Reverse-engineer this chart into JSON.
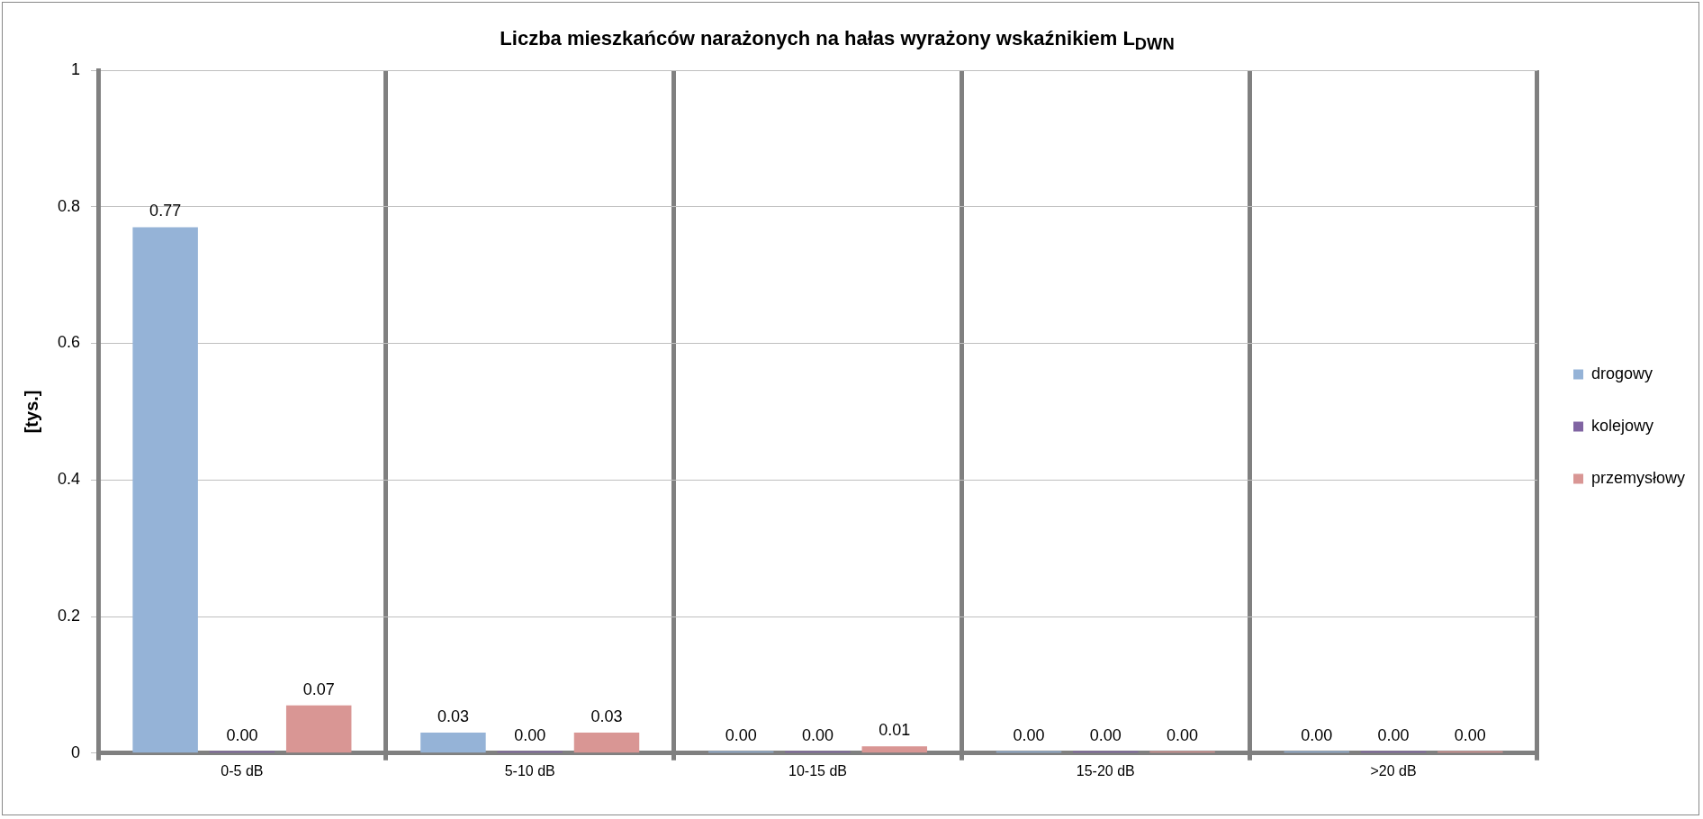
{
  "chart_data": {
    "type": "bar",
    "title": "Liczba mieszkańców narażonych na hałas wyrażony wskaźnikiem L$_{DWN}$",
    "ylabel": "[tys.]",
    "categories": [
      "0-5 dB",
      "5-10 dB",
      "10-15 dB",
      "15-20 dB",
      ">20 dB"
    ],
    "series": [
      {
        "name": "drogowy",
        "color": "#95b3d7",
        "values": [
          0.77,
          0.03,
          0,
          0,
          0
        ],
        "value_labels": [
          "0.77",
          "0.03",
          "0.00",
          "0.00",
          "0.00"
        ]
      },
      {
        "name": "kolejowy",
        "color": "#8064a2",
        "values": [
          0,
          0,
          0,
          0,
          0
        ],
        "value_labels": [
          "0.00",
          "0.00",
          "0.00",
          "0.00",
          "0.00"
        ]
      },
      {
        "name": "przemysłowy",
        "color": "#d99694",
        "values": [
          0.07,
          0.03,
          0.01,
          0,
          0
        ],
        "value_labels": [
          "0.07",
          "0.03",
          "0.01",
          "0.00",
          "0.00"
        ]
      }
    ],
    "ylim": [
      0,
      1
    ],
    "yticks": [
      0,
      0.2,
      0.4,
      0.6,
      0.8,
      1
    ],
    "grid": true,
    "legend": "right"
  }
}
